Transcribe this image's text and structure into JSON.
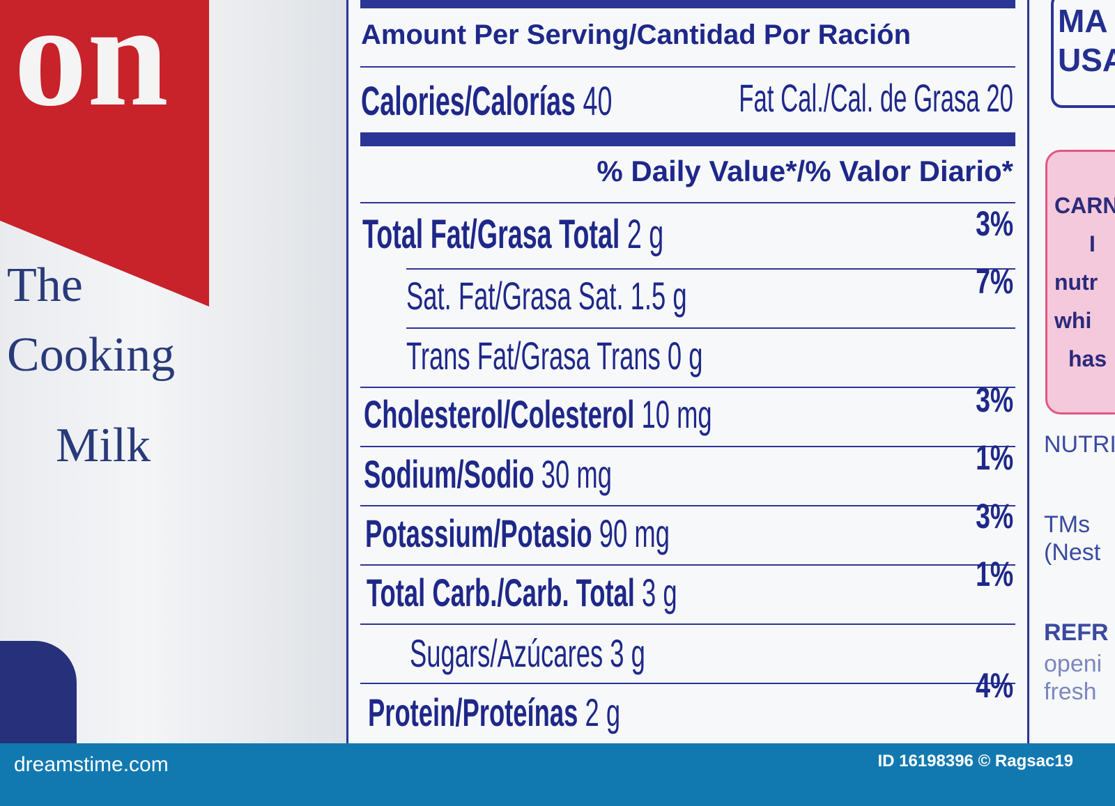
{
  "can": {
    "brand_fragment": "on",
    "tagline": [
      "The",
      "Cooking",
      "Milk"
    ]
  },
  "label": {
    "header": "Amount Per Serving/Cantidad Por Ración",
    "calories": "Calories/Calorías",
    "calories_value": "40",
    "fat_cal": "Fat Cal./Cal. de Grasa 20",
    "dv_header": "% Daily Value*/% Valor Diario*",
    "rows": [
      {
        "name": "Total Fat/Grasa Total",
        "amount": "2 g",
        "dv": "3%"
      },
      {
        "name": "Sat. Fat/Grasa Sat.",
        "amount": "1.5 g",
        "dv": "7%"
      },
      {
        "name": "Trans Fat/Grasa Trans",
        "amount": "0 g",
        "dv": ""
      },
      {
        "name": "Cholesterol/Colesterol",
        "amount": "10 mg",
        "dv": "3%"
      },
      {
        "name": "Sodium/Sodio",
        "amount": "30 mg",
        "dv": "1%"
      },
      {
        "name": "Potassium/Potasio",
        "amount": "90 mg",
        "dv": "3%"
      },
      {
        "name": "Total Carb./Carb. Total",
        "amount": "3 g",
        "dv": "1%"
      },
      {
        "name": "Sugars/Azúcares",
        "amount": "3 g",
        "dv": ""
      },
      {
        "name": "Protein/Proteínas",
        "amount": "2 g",
        "dv": "4%"
      }
    ]
  },
  "side": {
    "badge": [
      "MA",
      "USA"
    ],
    "pink_box": [
      "CARN",
      "I",
      "nutr",
      "whi",
      "has"
    ],
    "nutri": "NUTRI",
    "tms": [
      "TMs",
      "(Nest"
    ],
    "refr": [
      "REFR",
      "openi",
      "fresh"
    ]
  },
  "footer": {
    "logo": "dreamstime.com",
    "credit": "ID 16198396 © Ragsac19"
  },
  "colors": {
    "label_ink": "#1e2889",
    "footer": "#1279b0",
    "can_red": "#c8222a"
  }
}
